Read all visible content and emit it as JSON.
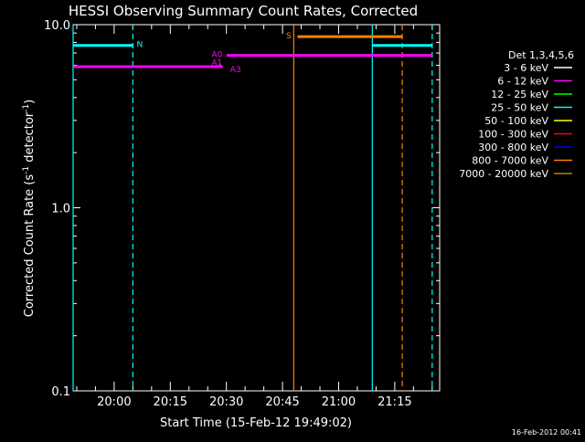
{
  "chart_data": {
    "type": "line",
    "title": "HESSI Observing Summary Count Rates, Corrected",
    "xlabel": "Start Time (15-Feb-12 19:49:02)",
    "ylabel": "Corrected Count Rate (s⁻¹ detector⁻¹)",
    "ylabel_parts": {
      "main": "Corrected Count Rate (s",
      "sup1": "-1",
      "mid": " detector",
      "sup2": "-1",
      "end": ")"
    },
    "y_scale": "log",
    "ylim": [
      0.1,
      10.0
    ],
    "xlim": [
      "19:49:02",
      "21:27:00"
    ],
    "y_ticks": [
      "0.1",
      "1.0",
      "10.0"
    ],
    "x_ticks": [
      "20:00",
      "20:15",
      "20:30",
      "20:45",
      "21:00",
      "21:15"
    ],
    "footer_date": "16-Feb-2012 00:41",
    "legend": {
      "placement": "right",
      "header": "Det 1,3,4,5,6",
      "entries": [
        {
          "label": "3 - 6 keV",
          "color": "#ffffff"
        },
        {
          "label": "6 - 12 keV",
          "color": "#ff00ff"
        },
        {
          "label": "12 - 25 keV",
          "color": "#00ff00"
        },
        {
          "label": "25 - 50 keV",
          "color": "#00ffff"
        },
        {
          "label": "50 - 100 keV",
          "color": "#ffff00"
        },
        {
          "label": "100 - 300 keV",
          "color": "#ff0000"
        },
        {
          "label": "300 - 800 keV",
          "color": "#0000ff"
        },
        {
          "label": "800 - 7000 keV",
          "color": "#ff8000"
        },
        {
          "label": "7000 - 20000 keV",
          "color": "#b8860b"
        }
      ]
    },
    "segments": [
      {
        "color": "#00ffff",
        "x": [
          "19:49:02",
          "20:05:00"
        ],
        "y": 7.7
      },
      {
        "color": "#00ffff",
        "x": [
          "21:09:00",
          "21:25:00"
        ],
        "y": 7.7
      },
      {
        "color": "#ff00ff",
        "x": [
          "19:49:02",
          "20:29:00"
        ],
        "y": 5.9
      },
      {
        "color": "#ff00ff",
        "x": [
          "20:30:00",
          "21:25:00"
        ],
        "y": 6.8
      },
      {
        "color": "#ff8000",
        "x": [
          "20:49:00",
          "21:17:00"
        ],
        "y": 8.6
      }
    ],
    "vlines": [
      {
        "color": "#00ffff",
        "x": "19:49:02",
        "style": "solid"
      },
      {
        "color": "#00ffff",
        "x": "20:05:00",
        "style": "dashed"
      },
      {
        "color": "#00ffff",
        "x": "21:09:00",
        "style": "solid"
      },
      {
        "color": "#00ffff",
        "x": "21:25:00",
        "style": "dashed"
      },
      {
        "color": "#ff8000",
        "x": "20:48:00",
        "style": "solid"
      },
      {
        "color": "#ff8000",
        "x": "21:17:00",
        "style": "dashed"
      }
    ],
    "annotations": [
      {
        "text": "N",
        "color": "#00ffff",
        "x": "20:06:00",
        "y": 7.8
      },
      {
        "text": "S",
        "color": "#ff8000",
        "x": "20:46:00",
        "y": 8.7
      },
      {
        "text": "A0",
        "color": "#ff00ff",
        "x": "20:26:00",
        "y": 6.9
      },
      {
        "text": "A1",
        "color": "#ff00ff",
        "x": "20:26:00",
        "y": 6.2
      },
      {
        "text": "A3",
        "color": "#ff00ff",
        "x": "20:31:00",
        "y": 5.7
      }
    ]
  }
}
